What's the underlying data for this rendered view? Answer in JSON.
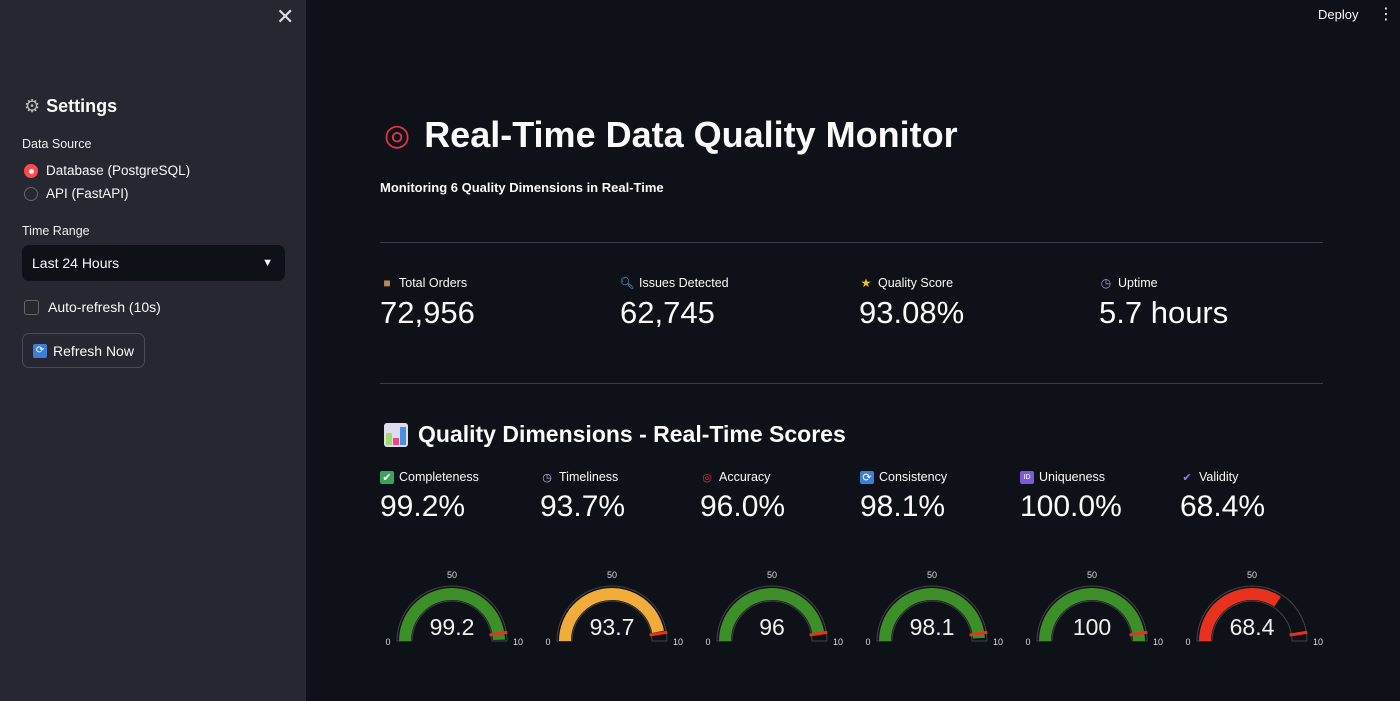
{
  "header": {
    "deploy": "Deploy",
    "menu_icon": "kebab-menu-icon"
  },
  "sidebar": {
    "title": "Settings",
    "data_source_label": "Data Source",
    "data_source_options": [
      "Database (PostgreSQL)",
      "API (FastAPI)"
    ],
    "data_source_selected": "Database (PostgreSQL)",
    "time_range_label": "Time Range",
    "time_range_value": "Last 24 Hours",
    "auto_refresh_label": "Auto-refresh (10s)",
    "auto_refresh_checked": false,
    "refresh_button": "Refresh Now"
  },
  "main": {
    "title": "Real-Time Data Quality Monitor",
    "subtitle": "Monitoring 6 Quality Dimensions in Real-Time",
    "metrics": [
      {
        "label": "Total Orders",
        "value": "72,956",
        "icon": "package-icon"
      },
      {
        "label": "Issues Detected",
        "value": "62,745",
        "icon": "magnifier-icon"
      },
      {
        "label": "Quality Score",
        "value": "93.08%",
        "icon": "star-icon"
      },
      {
        "label": "Uptime",
        "value": "5.7 hours",
        "icon": "stopwatch-icon"
      }
    ],
    "section_title": "Quality Dimensions - Real-Time Scores",
    "dimensions": [
      {
        "label": "Completeness",
        "value": "99.2%",
        "gauge": 99.2,
        "color": "#3d8f2a",
        "icon": "check-icon"
      },
      {
        "label": "Timeliness",
        "value": "93.7%",
        "gauge": 93.7,
        "color": "#f2ac3c",
        "icon": "stopwatch-icon"
      },
      {
        "label": "Accuracy",
        "value": "96.0%",
        "gauge": 96,
        "color": "#3d8f2a",
        "icon": "target-icon"
      },
      {
        "label": "Consistency",
        "value": "98.1%",
        "gauge": 98.1,
        "color": "#3d8f2a",
        "icon": "refresh-icon"
      },
      {
        "label": "Uniqueness",
        "value": "100.0%",
        "gauge": 100,
        "color": "#3d8f2a",
        "icon": "id-icon"
      },
      {
        "label": "Validity",
        "value": "68.4%",
        "gauge": 68.4,
        "color": "#e8321f",
        "icon": "checkmark-icon"
      }
    ],
    "gauge_ticks": [
      "0",
      "50",
      "10"
    ],
    "gauge_range": [
      0,
      100
    ],
    "gauge_threshold": 95,
    "threshold_color": "#e8321f"
  }
}
